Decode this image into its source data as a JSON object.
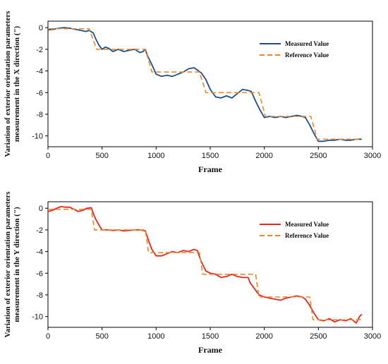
{
  "chart_data": [
    {
      "type": "line",
      "ylabel_line1": "Variation of exterior orientation parameters",
      "ylabel_line2": "measurement in the X direction (\")",
      "xlabel": "Frame",
      "xlim": [
        0,
        3000
      ],
      "ylim": [
        -11,
        0.6
      ],
      "xticks": [
        0,
        500,
        1000,
        1500,
        2000,
        2500,
        3000
      ],
      "yticks": [
        0,
        -2,
        -4,
        -6,
        -8,
        -10
      ],
      "legend_position": "top-right",
      "series": [
        {
          "name": "Measured Value",
          "color": "#1f4e8c",
          "style": "solid",
          "x": [
            0,
            50,
            100,
            150,
            200,
            250,
            300,
            350,
            380,
            420,
            440,
            470,
            500,
            530,
            560,
            600,
            650,
            700,
            750,
            800,
            850,
            880,
            900,
            920,
            960,
            1000,
            1050,
            1100,
            1150,
            1200,
            1250,
            1300,
            1350,
            1380,
            1420,
            1460,
            1500,
            1550,
            1600,
            1650,
            1700,
            1750,
            1800,
            1850,
            1880,
            1920,
            1960,
            2000,
            2050,
            2100,
            2150,
            2200,
            2250,
            2300,
            2350,
            2380,
            2420,
            2460,
            2500,
            2550,
            2600,
            2650,
            2700,
            2750,
            2800,
            2850,
            2900
          ],
          "y": [
            -0.2,
            -0.15,
            -0.05,
            0.0,
            -0.05,
            -0.15,
            -0.25,
            -0.35,
            -0.25,
            -0.5,
            -1.0,
            -1.6,
            -2.0,
            -1.8,
            -1.9,
            -2.2,
            -2.0,
            -2.2,
            -2.1,
            -2.0,
            -2.3,
            -2.2,
            -2.0,
            -2.6,
            -3.4,
            -4.3,
            -4.5,
            -4.4,
            -4.5,
            -4.3,
            -4.1,
            -3.8,
            -3.7,
            -3.9,
            -4.2,
            -4.8,
            -5.7,
            -6.4,
            -6.5,
            -6.3,
            -6.5,
            -6.1,
            -5.7,
            -5.8,
            -5.9,
            -6.8,
            -7.6,
            -8.3,
            -8.2,
            -8.3,
            -8.2,
            -8.3,
            -8.2,
            -8.1,
            -8.2,
            -8.3,
            -9.0,
            -9.8,
            -10.5,
            -10.5,
            -10.4,
            -10.4,
            -10.3,
            -10.4,
            -10.4,
            -10.3,
            -10.3
          ]
        },
        {
          "name": "Reference Value",
          "color": "#e8892c",
          "style": "dashed",
          "x": [
            0,
            380,
            450,
            900,
            960,
            1400,
            1460,
            1950,
            2010,
            2430,
            2490,
            2900
          ],
          "y": [
            -0.1,
            -0.1,
            -2.0,
            -2.0,
            -4.1,
            -4.1,
            -6.0,
            -6.0,
            -8.2,
            -8.2,
            -10.3,
            -10.3
          ]
        }
      ]
    },
    {
      "type": "line",
      "ylabel_line1": "Variation of exterior orientation parameters",
      "ylabel_line2": "measurement in the Y direction (\")",
      "xlabel": "Frame",
      "xlim": [
        0,
        3000
      ],
      "ylim": [
        -11,
        0.6
      ],
      "xticks": [
        0,
        500,
        1000,
        1500,
        2000,
        2500,
        3000
      ],
      "yticks": [
        0,
        -2,
        -4,
        -6,
        -8,
        -10
      ],
      "legend_position": "top-right",
      "series": [
        {
          "name": "Measured Value",
          "color": "#e8251f",
          "style": "solid",
          "x": [
            0,
            40,
            80,
            120,
            160,
            200,
            240,
            280,
            320,
            360,
            400,
            420,
            440,
            480,
            500,
            550,
            600,
            650,
            700,
            750,
            800,
            850,
            900,
            930,
            960,
            1000,
            1050,
            1100,
            1150,
            1200,
            1250,
            1300,
            1350,
            1380,
            1420,
            1460,
            1500,
            1550,
            1600,
            1650,
            1700,
            1750,
            1800,
            1850,
            1870,
            1900,
            1950,
            2000,
            2050,
            2100,
            2150,
            2200,
            2250,
            2300,
            2350,
            2380,
            2420,
            2460,
            2500,
            2550,
            2600,
            2650,
            2700,
            2750,
            2800,
            2850,
            2880,
            2900
          ],
          "y": [
            -0.3,
            -0.2,
            0.0,
            0.15,
            0.1,
            0.1,
            -0.1,
            -0.3,
            -0.2,
            0.0,
            0.05,
            -0.5,
            -1.0,
            -1.7,
            -2.0,
            -2.0,
            -2.05,
            -2.0,
            -2.1,
            -2.05,
            -2.0,
            -2.0,
            -2.1,
            -3.0,
            -3.8,
            -4.4,
            -4.4,
            -4.2,
            -4.0,
            -4.1,
            -3.9,
            -4.0,
            -3.8,
            -3.9,
            -5.0,
            -5.8,
            -6.0,
            -6.1,
            -6.4,
            -6.3,
            -6.1,
            -6.3,
            -6.4,
            -6.4,
            -6.9,
            -7.3,
            -8.0,
            -8.2,
            -8.3,
            -8.4,
            -8.5,
            -8.3,
            -8.2,
            -8.1,
            -8.2,
            -8.4,
            -9.0,
            -9.7,
            -10.3,
            -10.4,
            -10.2,
            -10.5,
            -10.3,
            -10.4,
            -10.2,
            -10.6,
            -10.0,
            -9.8
          ]
        },
        {
          "name": "Reference Value",
          "color": "#e8892c",
          "style": "dashed",
          "x": [
            0,
            400,
            430,
            900,
            930,
            1400,
            1430,
            1920,
            1950,
            2420,
            2450,
            2900
          ],
          "y": [
            -0.1,
            -0.1,
            -2.0,
            -2.0,
            -4.1,
            -4.1,
            -6.1,
            -6.1,
            -8.2,
            -8.2,
            -10.3,
            -10.3
          ]
        }
      ]
    }
  ]
}
